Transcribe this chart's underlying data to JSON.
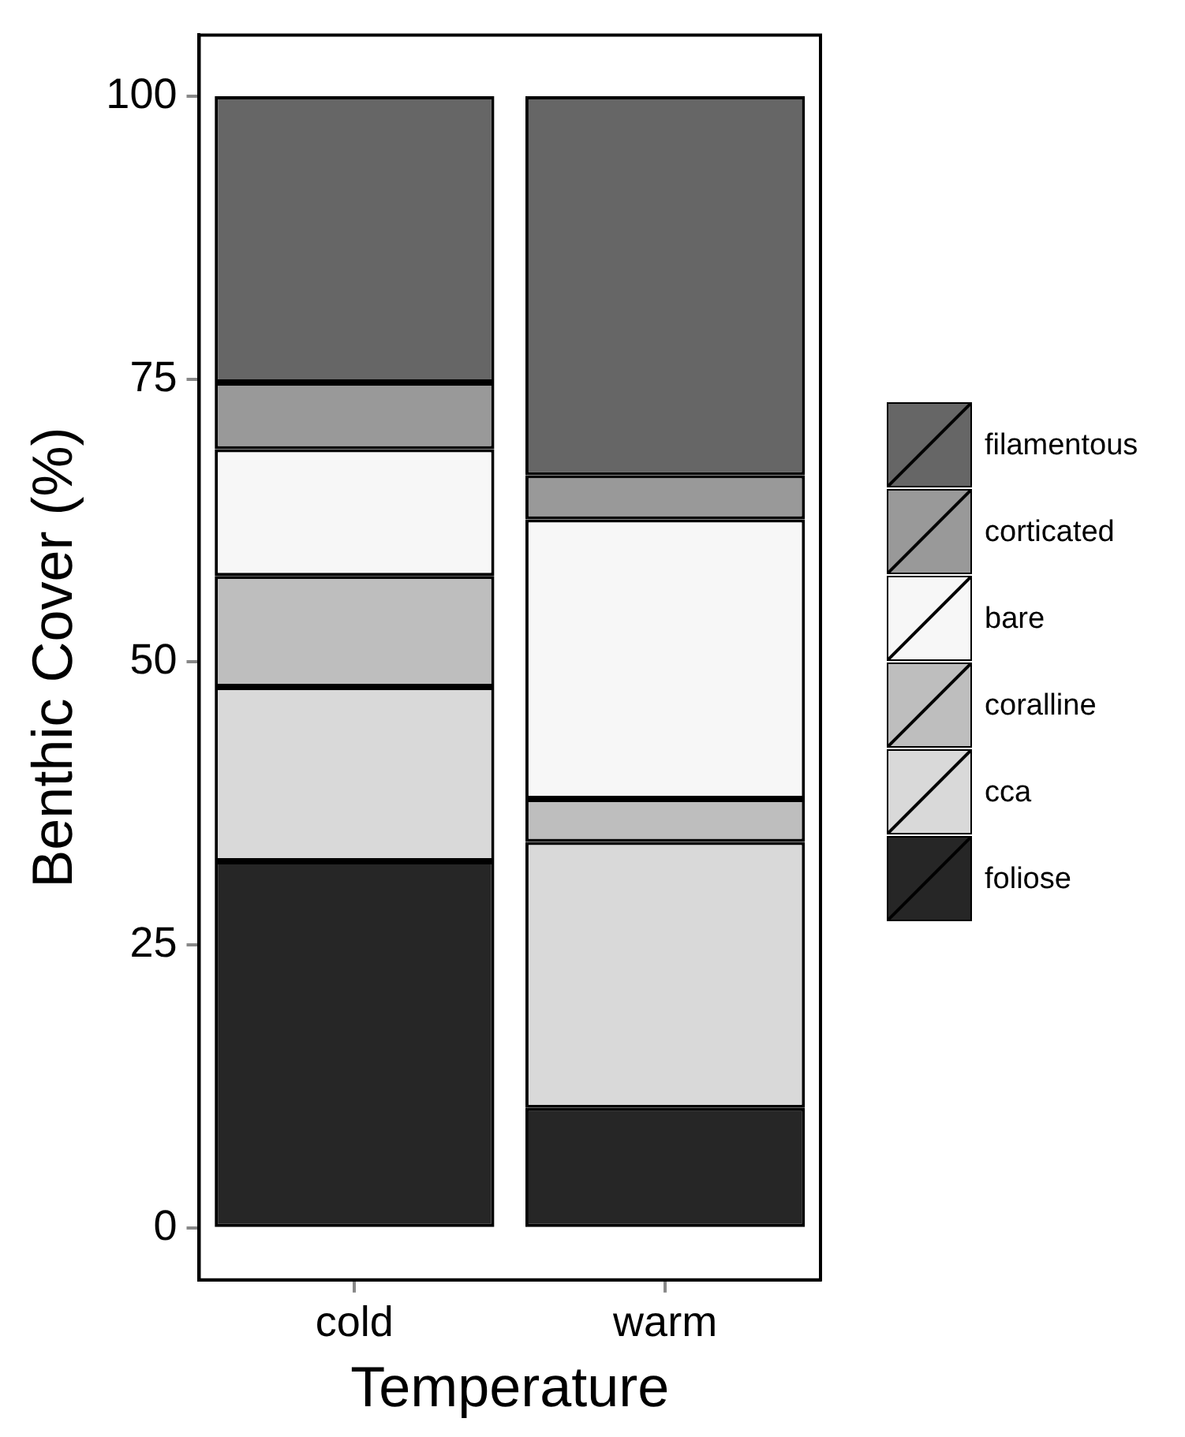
{
  "chart_data": {
    "type": "bar",
    "stacked": true,
    "xlabel": "Temperature",
    "ylabel": "Benthic Cover (%)",
    "categories": [
      "cold",
      "warm"
    ],
    "series": [
      {
        "name": "foliose",
        "color": "#262626",
        "values": [
          32.4,
          10.6
        ]
      },
      {
        "name": "cca",
        "color": "#d9d9d9",
        "values": [
          15.4,
          23.5
        ]
      },
      {
        "name": "coralline",
        "color": "#bebebe",
        "values": [
          9.8,
          3.8
        ]
      },
      {
        "name": "bare",
        "color": "#f7f7f7",
        "values": [
          11.2,
          24.7
        ]
      },
      {
        "name": "corticated",
        "color": "#999999",
        "values": [
          5.9,
          3.9
        ]
      },
      {
        "name": "filamentous",
        "color": "#666666",
        "values": [
          25.3,
          33.5
        ]
      }
    ],
    "ylim": [
      -4.6,
      105.4
    ],
    "yticks": [
      0,
      25,
      50,
      75,
      100
    ],
    "grid": false,
    "legend": "right"
  }
}
